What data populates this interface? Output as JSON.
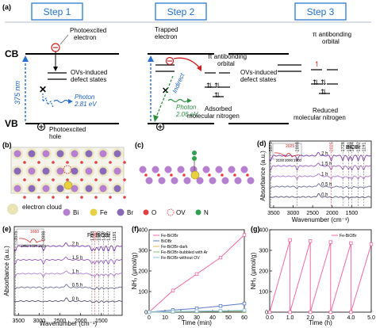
{
  "panel_a": {
    "label": "(a)",
    "steps": [
      "Step 1",
      "Step 2",
      "Step 3"
    ],
    "cb": "CB",
    "vb": "VB",
    "wavelength": "375 nm",
    "step1": {
      "photoexcited_electron": [
        "Photoexcited",
        "electron"
      ],
      "ovs": [
        "OVs-induced",
        "defect states"
      ],
      "photon": [
        "Photon",
        "2.81 eV"
      ],
      "photoexcited_hole": [
        "Photoexcited",
        "hole"
      ]
    },
    "step2": {
      "trapped": [
        "Trapped",
        "electron"
      ],
      "pi_orbital": [
        "π antibonding",
        "orbital"
      ],
      "indirect": "Indirect",
      "photon": [
        "Photon",
        "2.06 eV"
      ],
      "adsorbed": [
        "Adsorbed",
        "molecular nitrogen"
      ]
    },
    "step3": {
      "pi_orbital": [
        "π antibonding",
        "orbital"
      ],
      "ovs": [
        "OVs-induced",
        "defect states"
      ],
      "reduced": [
        "Reduced",
        "molecular nitrogen"
      ]
    }
  },
  "panel_b": {
    "label": "(b)"
  },
  "panel_c": {
    "label": "(c)"
  },
  "legend_atoms": {
    "items": [
      {
        "label": "electron cloud",
        "color": "#e8e4b8"
      },
      {
        "label": "Bi",
        "color": "#b67fd0"
      },
      {
        "label": "Fe",
        "color": "#e8d040"
      },
      {
        "label": "Br",
        "color": "#8a6ab8"
      },
      {
        "label": "O",
        "color": "#e04040"
      },
      {
        "label": "OV",
        "color": "#e04040"
      },
      {
        "label": "N",
        "color": "#30a050"
      }
    ]
  },
  "chart_data": [
    {
      "id": "d",
      "type": "line",
      "panel_label": "(d)",
      "title": "BiOBr",
      "xlabel": "Wavenumber (cm⁻¹)",
      "ylabel": "Absorbance (a.u.)",
      "xlim": [
        3600,
        1000
      ],
      "x_ticks": [
        3500,
        3000,
        2500,
        2000,
        1500
      ],
      "series_labels": [
        "2 h",
        "1.5 h",
        "1 h",
        "0.5 h",
        "0 h"
      ],
      "peak_labels": [
        "3575",
        "2898",
        "2025",
        "1728",
        "1581",
        "1494",
        "1332",
        "1191"
      ],
      "inset": {
        "ticks": [
          "2100",
          "2000",
          "1900"
        ],
        "peak": "2025"
      }
    },
    {
      "id": "e",
      "type": "line",
      "panel_label": "(e)",
      "title": "Fe-BiOBr",
      "xlabel": "Wavenumber (cm⁻¹)",
      "ylabel": "Absorbance (a.u.)",
      "xlim": [
        3600,
        1000
      ],
      "x_ticks": [
        3500,
        3000,
        2500,
        2000,
        1500
      ],
      "series_labels": [
        "2 h",
        "1.5 h",
        "1 h",
        "0.5 h",
        "0 h"
      ],
      "peak_labels": [
        "3575",
        "2898",
        "1728",
        "1660",
        "1560",
        "1447",
        "1332",
        "1191"
      ],
      "inset": {
        "ticks": [
          "1800",
          "1700",
          "1600"
        ],
        "peak": "1660"
      }
    },
    {
      "id": "f",
      "type": "line",
      "panel_label": "(f)",
      "xlabel": "Time (min)",
      "ylabel": "NH₃ (μmol/g)",
      "xlim": [
        0,
        60
      ],
      "ylim": [
        0,
        400
      ],
      "x_ticks": [
        0,
        10,
        20,
        30,
        40,
        50,
        60
      ],
      "y_ticks": [
        0,
        100,
        200,
        300,
        400
      ],
      "legend": [
        "Fe-BiOBr",
        "BiOBr",
        "Fe-BiOBr-dark",
        "Fe-BiOBr-bubbled with Ar",
        "Fe-BiOBr-without OV"
      ],
      "series": [
        {
          "name": "Fe-BiOBr",
          "color": "#f06aa0",
          "x": [
            0,
            15,
            30,
            45,
            60
          ],
          "y": [
            0,
            105,
            185,
            265,
            375
          ]
        },
        {
          "name": "BiOBr",
          "color": "#5a78c8",
          "x": [
            0,
            15,
            30,
            45,
            60
          ],
          "y": [
            0,
            10,
            18,
            30,
            42
          ]
        },
        {
          "name": "Fe-BiOBr-dark",
          "color": "#e0b050",
          "x": [
            0,
            15,
            30,
            45,
            60
          ],
          "y": [
            0,
            2,
            3,
            4,
            5
          ]
        },
        {
          "name": "Fe-BiOBr-bubbled with Ar",
          "color": "#80c070",
          "x": [
            0,
            15,
            30,
            45,
            60
          ],
          "y": [
            0,
            2,
            4,
            5,
            6
          ]
        },
        {
          "name": "Fe-BiOBr-without OV",
          "color": "#8ac0e0",
          "x": [
            0,
            15,
            30,
            45,
            60
          ],
          "y": [
            0,
            3,
            5,
            7,
            9
          ]
        }
      ]
    },
    {
      "id": "g",
      "type": "line",
      "panel_label": "(g)",
      "xlabel": "Time (h)",
      "ylabel": "NH₃ (μmol/g)",
      "xlim": [
        0,
        5
      ],
      "ylim": [
        0,
        400
      ],
      "x_ticks": [
        0,
        1,
        2,
        3,
        4,
        5
      ],
      "x_tick_labels": [
        "0.0",
        "1.0",
        "2.0",
        "3.0",
        "4.0",
        "5.0"
      ],
      "y_ticks": [
        0,
        100,
        200,
        300,
        400
      ],
      "legend": [
        "Fe-BiOBr"
      ],
      "series": [
        {
          "name": "Fe-BiOBr",
          "color": "#f06aa0",
          "x": [
            0,
            1,
            1,
            2,
            2,
            3,
            3,
            4,
            4,
            5
          ],
          "y": [
            0,
            350,
            0,
            345,
            0,
            340,
            0,
            335,
            0,
            330
          ]
        }
      ]
    }
  ]
}
